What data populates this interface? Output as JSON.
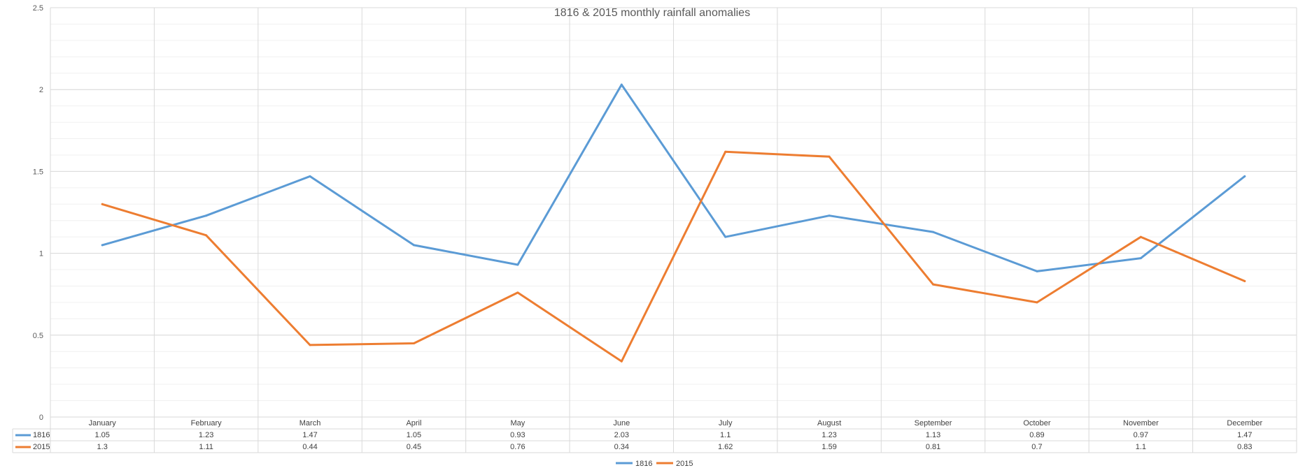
{
  "chart_data": {
    "type": "line",
    "title": "1816 & 2015 monthly rainfall anomalies",
    "xlabel": "",
    "ylabel": "",
    "categories": [
      "January",
      "February",
      "March",
      "April",
      "May",
      "June",
      "July",
      "August",
      "September",
      "October",
      "November",
      "December"
    ],
    "series": [
      {
        "name": "1816",
        "color": "#5b9bd5",
        "values": [
          1.05,
          1.23,
          1.47,
          1.05,
          0.93,
          2.03,
          1.1,
          1.23,
          1.13,
          0.89,
          0.97,
          1.47
        ]
      },
      {
        "name": "2015",
        "color": "#ed7d31",
        "values": [
          1.3,
          1.11,
          0.44,
          0.45,
          0.76,
          0.34,
          1.62,
          1.59,
          0.81,
          0.7,
          1.1,
          0.83
        ]
      }
    ],
    "ylim": [
      0,
      2.5
    ],
    "yticks": [
      "0",
      "0.5",
      "1",
      "1.5",
      "2",
      "2.5"
    ],
    "grid": true,
    "data_table": true,
    "legend_position": "bottom"
  }
}
